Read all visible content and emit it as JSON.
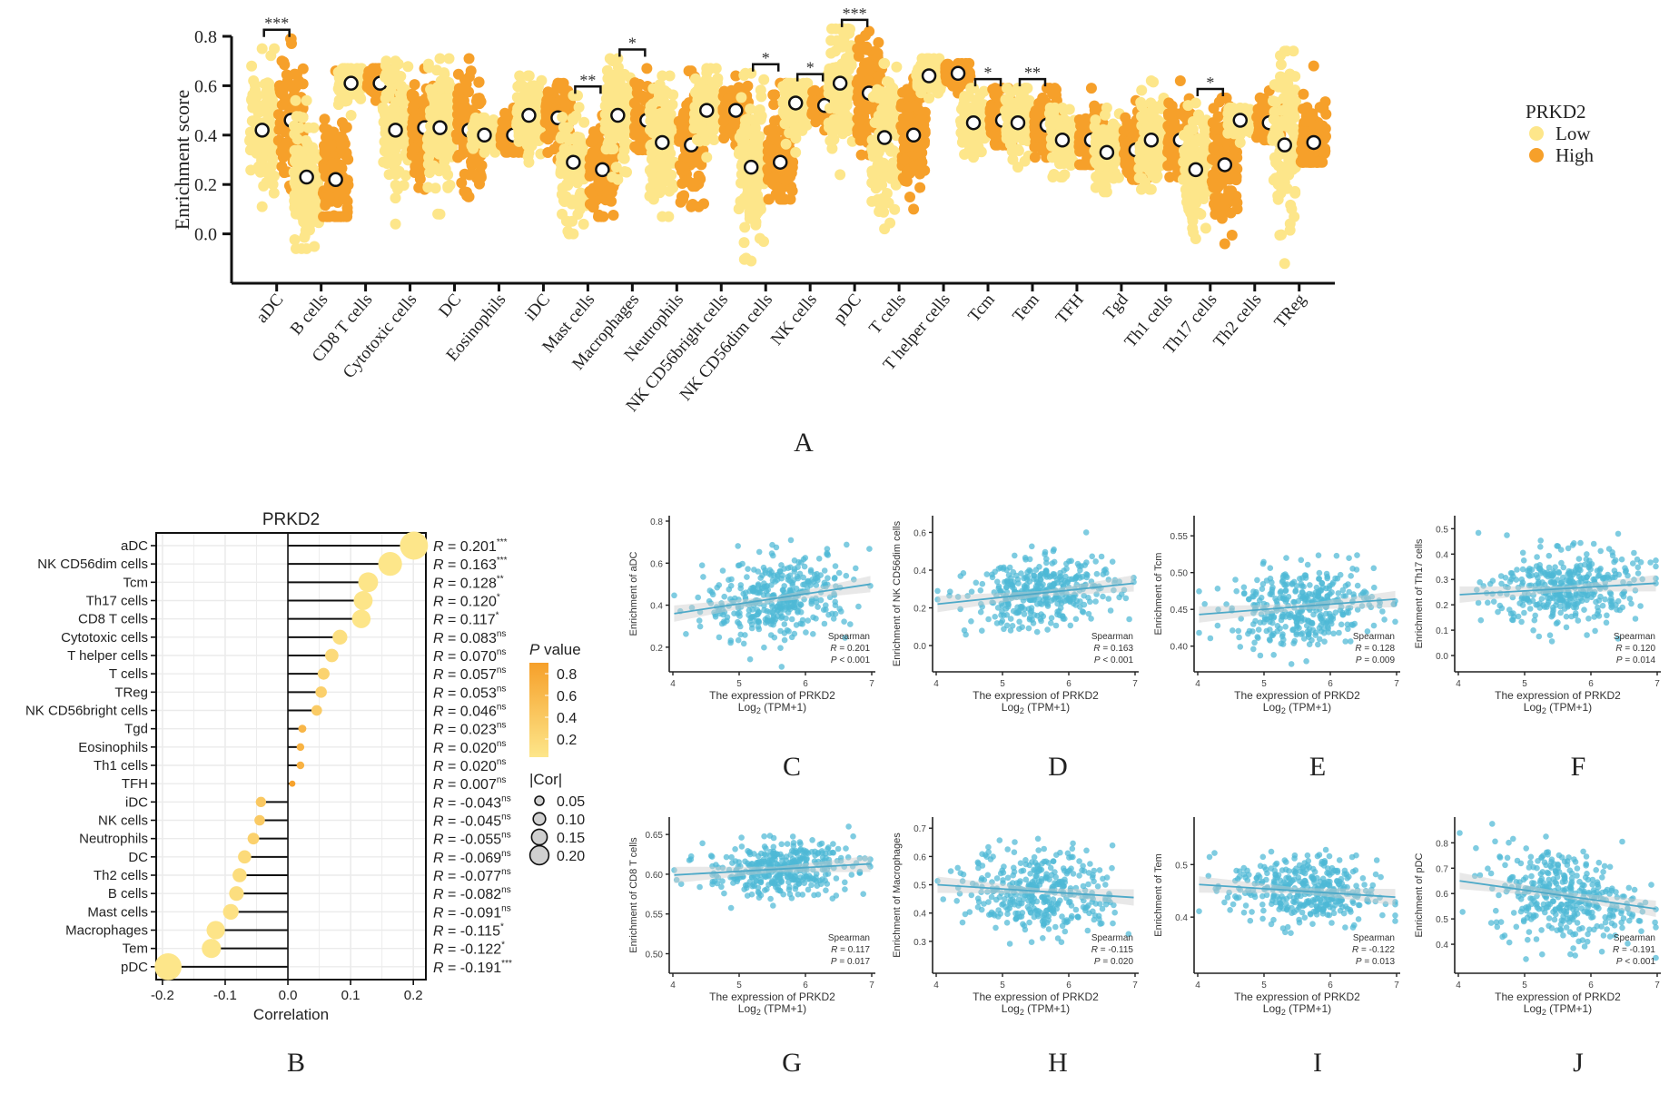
{
  "figure": {
    "panel_letters": [
      "A",
      "B",
      "C",
      "D",
      "E",
      "F",
      "G",
      "H",
      "I",
      "J"
    ]
  },
  "chart_data": [
    {
      "panel": "A",
      "type": "scatter",
      "subtype": "jittered strip plot with mean markers",
      "title": "",
      "xlabel": "",
      "ylabel": "Enrichment score",
      "ylim": [
        -0.2,
        0.8
      ],
      "yticks": [
        "0.0",
        "0.2",
        "0.4",
        "0.6",
        "0.8"
      ],
      "legend": {
        "title": "PRKD2",
        "placement": "right",
        "entries": [
          {
            "label": "Low",
            "color": "#FDE68A"
          },
          {
            "label": "High",
            "color": "#F6A02A"
          }
        ]
      },
      "categories": [
        "aDC",
        "B cells",
        "CD8 T cells",
        "Cytotoxic cells",
        "DC",
        "Eosinophils",
        "iDC",
        "Mast cells",
        "Macrophages",
        "Neutrophils",
        "NK CD56bright cells",
        "NK CD56dim cells",
        "NK cells",
        "pDC",
        "T cells",
        "T helper cells",
        "Tcm",
        "Tem",
        "TFH",
        "Tgd",
        "Th1 cells",
        "Th17 cells",
        "Th2 cells",
        "TReg"
      ],
      "series": [
        {
          "name": "Low",
          "mean": [
            0.42,
            0.23,
            0.61,
            0.42,
            0.43,
            0.4,
            0.48,
            0.29,
            0.48,
            0.37,
            0.5,
            0.27,
            0.53,
            0.61,
            0.39,
            0.64,
            0.45,
            0.45,
            0.38,
            0.33,
            0.38,
            0.26,
            0.46,
            0.36
          ],
          "min": [
            0.11,
            -0.06,
            0.48,
            0.04,
            0.08,
            0.33,
            0.29,
            0.0,
            0.22,
            0.07,
            0.31,
            -0.11,
            0.33,
            0.24,
            0.02,
            0.55,
            0.31,
            0.27,
            0.23,
            0.17,
            0.18,
            -0.02,
            0.37,
            -0.12
          ],
          "max": [
            0.75,
            0.54,
            0.67,
            0.7,
            0.71,
            0.47,
            0.64,
            0.56,
            0.71,
            0.64,
            0.67,
            0.65,
            0.61,
            0.83,
            0.69,
            0.71,
            0.59,
            0.59,
            0.51,
            0.51,
            0.62,
            0.53,
            0.51,
            0.74
          ]
        },
        {
          "name": "High",
          "mean": [
            0.46,
            0.22,
            0.61,
            0.43,
            0.42,
            0.4,
            0.47,
            0.26,
            0.46,
            0.36,
            0.5,
            0.29,
            0.52,
            0.57,
            0.4,
            0.65,
            0.46,
            0.44,
            0.38,
            0.34,
            0.38,
            0.28,
            0.45,
            0.37
          ],
          "min": [
            0.18,
            0.07,
            0.54,
            0.18,
            0.15,
            0.33,
            0.3,
            0.07,
            0.34,
            0.11,
            0.36,
            0.14,
            0.42,
            0.32,
            0.1,
            0.57,
            0.36,
            0.31,
            0.28,
            0.22,
            0.23,
            -0.04,
            0.38,
            0.29
          ],
          "max": [
            0.79,
            0.66,
            0.67,
            0.67,
            0.71,
            0.51,
            0.61,
            0.48,
            0.67,
            0.66,
            0.64,
            0.61,
            0.58,
            0.82,
            0.63,
            0.69,
            0.59,
            0.59,
            0.59,
            0.54,
            0.62,
            0.55,
            0.58,
            0.68
          ]
        }
      ],
      "significance": [
        {
          "category": "aDC",
          "label": "***"
        },
        {
          "category": "Mast cells",
          "label": "**"
        },
        {
          "category": "Macrophages",
          "label": "*"
        },
        {
          "category": "NK CD56dim cells",
          "label": "*"
        },
        {
          "category": "NK cells",
          "label": "*"
        },
        {
          "category": "pDC",
          "label": "***"
        },
        {
          "category": "Tcm",
          "label": "*"
        },
        {
          "category": "Tem",
          "label": "**"
        },
        {
          "category": "Th17 cells",
          "label": "*"
        }
      ]
    },
    {
      "panel": "B",
      "type": "scatter",
      "subtype": "lollipop",
      "title": "PRKD2",
      "xlabel": "Correlation",
      "ylabel": "",
      "xlim": [
        -0.21,
        0.22
      ],
      "xticks": [
        "-0.2",
        "-0.1",
        "0.0",
        "0.1",
        "0.2"
      ],
      "grid": true,
      "categories": [
        "aDC",
        "NK CD56dim cells",
        "Tcm",
        "Th17 cells",
        "CD8 T cells",
        "Cytotoxic cells",
        "T helper cells",
        "T cells",
        "TReg",
        "NK CD56bright cells",
        "Tgd",
        "Eosinophils",
        "Th1 cells",
        "TFH",
        "iDC",
        "NK cells",
        "Neutrophils",
        "DC",
        "Th2 cells",
        "B cells",
        "Mast cells",
        "Macrophages",
        "Tem",
        "pDC"
      ],
      "values": [
        0.201,
        0.163,
        0.128,
        0.12,
        0.117,
        0.083,
        0.07,
        0.057,
        0.053,
        0.046,
        0.023,
        0.02,
        0.02,
        0.007,
        -0.043,
        -0.045,
        -0.055,
        -0.069,
        -0.077,
        -0.082,
        -0.091,
        -0.115,
        -0.122,
        -0.191
      ],
      "labels": [
        "R = 0.201",
        "R = 0.163",
        "R = 0.128",
        "R = 0.120",
        "R = 0.117",
        "R = 0.083",
        "R = 0.070",
        "R = 0.057",
        "R = 0.053",
        "R = 0.046",
        "R = 0.023",
        "R = 0.020",
        "R = 0.020",
        "R = 0.007",
        "R = -0.043",
        "R = -0.045",
        "R = -0.055",
        "R = -0.069",
        "R = -0.077",
        "R = -0.082",
        "R = -0.091",
        "R = -0.115",
        "R = -0.122",
        "R = -0.191"
      ],
      "sig": [
        "***",
        "***",
        "**",
        "*",
        "*",
        "ns",
        "ns",
        "ns",
        "ns",
        "ns",
        "ns",
        "ns",
        "ns",
        "ns",
        "ns",
        "ns",
        "ns",
        "ns",
        "ns",
        "ns",
        "ns",
        "*",
        "*",
        "***"
      ],
      "pvalues": [
        0.0,
        0.0,
        0.009,
        0.014,
        0.017,
        0.09,
        0.15,
        0.25,
        0.28,
        0.35,
        0.62,
        0.66,
        0.67,
        0.88,
        0.38,
        0.36,
        0.27,
        0.16,
        0.12,
        0.1,
        0.06,
        0.02,
        0.013,
        0.0
      ],
      "legend": {
        "color_title": "P value",
        "color_ticks": [
          "0.8",
          "0.6",
          "0.4",
          "0.2"
        ],
        "color_range": [
          "#FDE68A",
          "#F6A02A"
        ],
        "size_title": "|Cor|",
        "size_ticks": [
          "0.05",
          "0.10",
          "0.15",
          "0.20"
        ]
      }
    },
    {
      "panel": "C",
      "type": "scatter",
      "ylabel": "Enrichment of aDC",
      "xlabel": "The expression of PRKD2",
      "xlabel2": "Log2 (TPM+1)",
      "xlim": [
        4,
        7
      ],
      "xticks": [
        "4",
        "5",
        "6",
        "7"
      ],
      "ylim": [
        0.1,
        0.8
      ],
      "yticks": [
        "0.2",
        "0.4",
        "0.6",
        "0.8"
      ],
      "method": "Spearman",
      "r": "R = 0.201",
      "p": "P < 0.001",
      "slope": 0.201,
      "fit": [
        0.36,
        0.5
      ],
      "center": 0.45,
      "spread": 0.13
    },
    {
      "panel": "D",
      "type": "scatter",
      "ylabel": "Enrichment of NK CD56dim cells",
      "xlabel": "The expression of PRKD2",
      "xlabel2": "Log2 (TPM+1)",
      "xlim": [
        4,
        7
      ],
      "xticks": [
        "4",
        "5",
        "6",
        "7"
      ],
      "ylim": [
        -0.12,
        0.66
      ],
      "yticks": [
        "0.0",
        "0.2",
        "0.4",
        "0.6"
      ],
      "method": "Spearman",
      "r": "R = 0.163",
      "p": "P < 0.001",
      "slope": 0.163,
      "fit": [
        0.22,
        0.33
      ],
      "center": 0.28,
      "spread": 0.12
    },
    {
      "panel": "E",
      "type": "scatter",
      "ylabel": "Enrichment of Tcm",
      "xlabel": "The expression of PRKD2",
      "xlabel2": "Log2 (TPM+1)",
      "xlim": [
        4,
        7
      ],
      "xticks": [
        "4",
        "5",
        "6",
        "7"
      ],
      "ylim": [
        0.37,
        0.57
      ],
      "yticks": [
        "0.40",
        "0.45",
        "0.50",
        "0.55"
      ],
      "method": "Spearman",
      "r": "R = 0.128",
      "p": "P = 0.009",
      "slope": 0.128,
      "fit": [
        0.443,
        0.464
      ],
      "center": 0.455,
      "spread": 0.035
    },
    {
      "panel": "F",
      "type": "scatter",
      "ylabel": "Enrichment of Th17 cells",
      "xlabel": "The expression of PRKD2",
      "xlabel2": "Log2 (TPM+1)",
      "xlim": [
        4,
        7
      ],
      "xticks": [
        "4",
        "5",
        "6",
        "7"
      ],
      "ylim": [
        -0.05,
        0.53
      ],
      "yticks": [
        "0.0",
        "0.1",
        "0.2",
        "0.3",
        "0.4",
        "0.5"
      ],
      "method": "Spearman",
      "r": "R = 0.120",
      "p": "P = 0.014",
      "slope": 0.12,
      "fit": [
        0.24,
        0.285
      ],
      "center": 0.27,
      "spread": 0.1
    },
    {
      "panel": "G",
      "type": "scatter",
      "ylabel": "Enrichment of CD8 T cells",
      "xlabel": "The expression of PRKD2",
      "xlabel2": "Log2 (TPM+1)",
      "xlim": [
        4,
        7
      ],
      "xticks": [
        "4",
        "5",
        "6",
        "7"
      ],
      "ylim": [
        0.48,
        0.665
      ],
      "yticks": [
        "0.50",
        "0.55",
        "0.60",
        "0.65"
      ],
      "method": "Spearman",
      "r": "R = 0.117",
      "p": "P = 0.017",
      "slope": 0.117,
      "fit": [
        0.599,
        0.613
      ],
      "center": 0.607,
      "spread": 0.022
    },
    {
      "panel": "H",
      "type": "scatter",
      "ylabel": "Enrichment of Macrophages",
      "xlabel": "The expression of PRKD2",
      "xlabel2": "Log2 (TPM+1)",
      "xlim": [
        4,
        7
      ],
      "xticks": [
        "4",
        "5",
        "6",
        "7"
      ],
      "ylim": [
        0.2,
        0.72
      ],
      "yticks": [
        "0.3",
        "0.4",
        "0.5",
        "0.6",
        "0.7"
      ],
      "method": "Spearman",
      "r": "R = -0.115",
      "p": "P = 0.020",
      "slope": -0.115,
      "fit": [
        0.5,
        0.455
      ],
      "center": 0.47,
      "spread": 0.1
    },
    {
      "panel": "I",
      "type": "scatter",
      "ylabel": "Enrichment of Tem",
      "xlabel": "The expression of PRKD2",
      "xlabel2": "Log2 (TPM+1)",
      "xlim": [
        4,
        7
      ],
      "xticks": [
        "4",
        "5",
        "6",
        "7"
      ],
      "ylim": [
        0.3,
        0.58
      ],
      "yticks": [
        "0.4",
        "0.5"
      ],
      "method": "Spearman",
      "r": "R = -0.122",
      "p": "P = 0.013",
      "slope": -0.122,
      "fit": [
        0.462,
        0.438
      ],
      "center": 0.45,
      "spread": 0.045
    },
    {
      "panel": "J",
      "type": "scatter",
      "ylabel": "Enrichment of pDC",
      "xlabel": "The expression of PRKD2",
      "xlabel2": "Log2 (TPM+1)",
      "xlim": [
        4,
        7
      ],
      "xticks": [
        "4",
        "5",
        "6",
        "7"
      ],
      "ylim": [
        0.3,
        0.88
      ],
      "yticks": [
        "0.4",
        "0.5",
        "0.6",
        "0.7",
        "0.8"
      ],
      "method": "Spearman",
      "r": "R = -0.191",
      "p": "P < 0.001",
      "slope": -0.191,
      "fit": [
        0.65,
        0.54
      ],
      "center": 0.6,
      "spread": 0.12
    }
  ]
}
